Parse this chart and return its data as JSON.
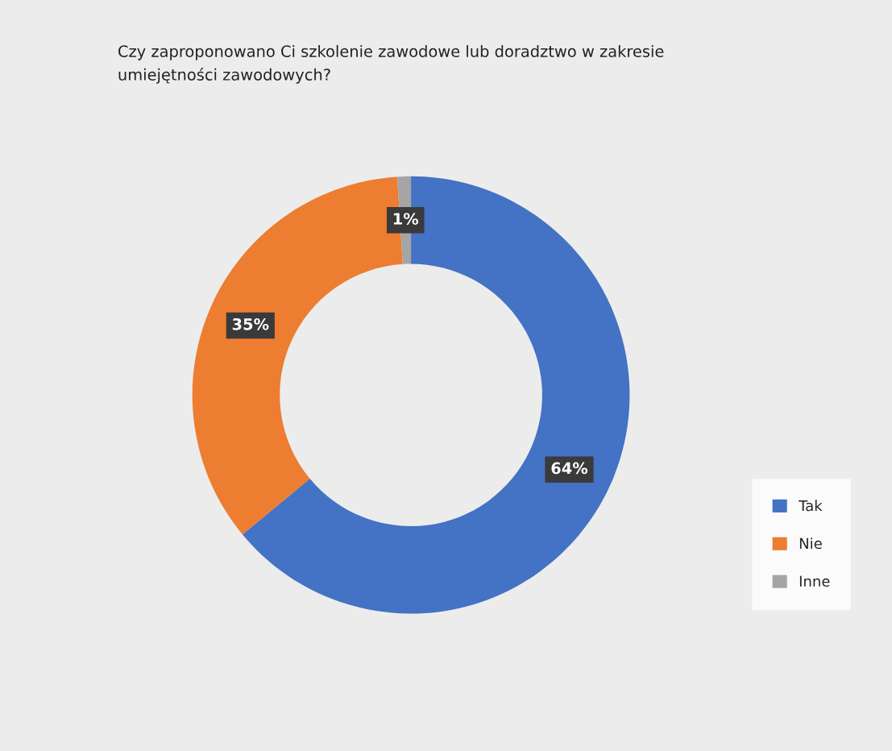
{
  "chart_data": {
    "type": "donut",
    "title": "Czy zaproponowano Ci szkolenie zawodowe lub doradztwo w zakresie\numiejętności zawodowych?",
    "categories": [
      "Tak",
      "Nie",
      "Inne"
    ],
    "values": [
      64,
      35,
      1
    ],
    "colors": [
      "#4472c4",
      "#ed7d31",
      "#a5a5a5"
    ],
    "value_labels": [
      "64%",
      "35%",
      "1%"
    ],
    "legend": "right"
  }
}
